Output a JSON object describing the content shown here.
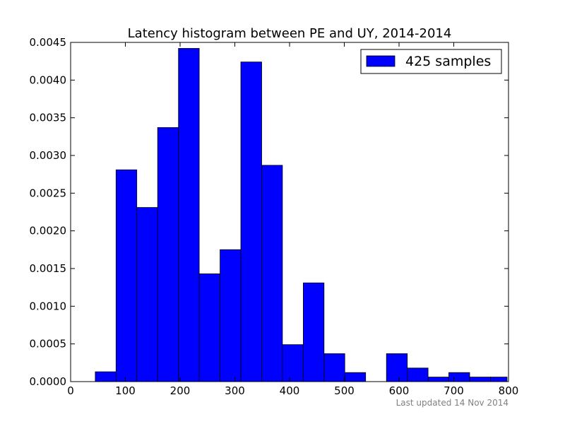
{
  "chart_data": {
    "type": "bar",
    "title": "Latency histogram between PE and UY, 2014-2014",
    "xlabel": "",
    "ylabel": "",
    "xlim": [
      0,
      800
    ],
    "ylim": [
      0,
      0.0045
    ],
    "xticks": [
      "0",
      "100",
      "200",
      "300",
      "400",
      "500",
      "600",
      "700",
      "800"
    ],
    "yticks": [
      "0.0000",
      "0.0005",
      "0.0010",
      "0.0015",
      "0.0020",
      "0.0025",
      "0.0030",
      "0.0035",
      "0.0040",
      "0.0045"
    ],
    "bar_color": "#0000ff",
    "legend": {
      "label": "425 samples",
      "position": "top-right"
    },
    "bins": [
      {
        "x0": 45,
        "x1": 83,
        "y": 0.00013
      },
      {
        "x0": 83,
        "x1": 121,
        "y": 0.00281
      },
      {
        "x0": 121,
        "x1": 159,
        "y": 0.00231
      },
      {
        "x0": 159,
        "x1": 197,
        "y": 0.00337
      },
      {
        "x0": 197,
        "x1": 235,
        "y": 0.00442
      },
      {
        "x0": 235,
        "x1": 273,
        "y": 0.00143
      },
      {
        "x0": 273,
        "x1": 311,
        "y": 0.00175
      },
      {
        "x0": 311,
        "x1": 349,
        "y": 0.00424
      },
      {
        "x0": 349,
        "x1": 387,
        "y": 0.00287
      },
      {
        "x0": 387,
        "x1": 425,
        "y": 0.00049
      },
      {
        "x0": 425,
        "x1": 463,
        "y": 0.00131
      },
      {
        "x0": 463,
        "x1": 501,
        "y": 0.00037
      },
      {
        "x0": 501,
        "x1": 539,
        "y": 0.00012
      },
      {
        "x0": 539,
        "x1": 577,
        "y": 0.0
      },
      {
        "x0": 577,
        "x1": 615,
        "y": 0.00037
      },
      {
        "x0": 615,
        "x1": 653,
        "y": 0.00018
      },
      {
        "x0": 653,
        "x1": 691,
        "y": 6e-05
      },
      {
        "x0": 691,
        "x1": 729,
        "y": 0.00012
      },
      {
        "x0": 729,
        "x1": 767,
        "y": 6e-05
      },
      {
        "x0": 767,
        "x1": 805,
        "y": 6e-05
      }
    ]
  },
  "footnote": "Last updated 14 Nov 2014"
}
